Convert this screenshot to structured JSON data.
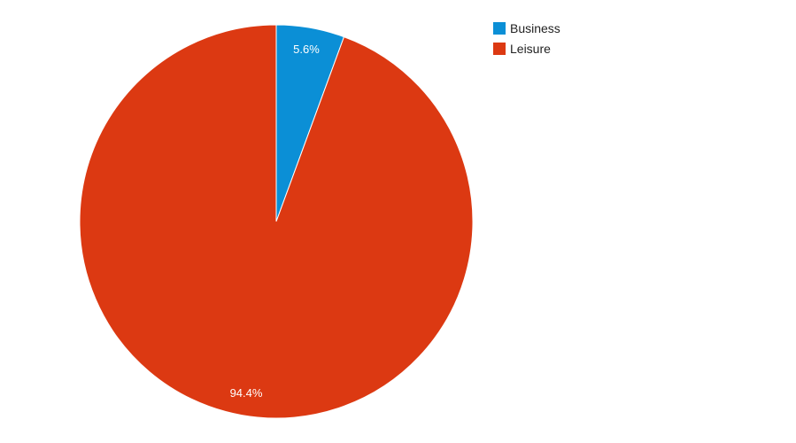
{
  "chart_data": {
    "type": "pie",
    "title": "",
    "legend_position": "top-right",
    "slices": [
      {
        "name": "Business",
        "value": 5.6,
        "label": "5.6%",
        "color": "#0b8fd6"
      },
      {
        "name": "Leisure",
        "value": 94.4,
        "label": "94.4%",
        "color": "#dc3912"
      }
    ]
  }
}
